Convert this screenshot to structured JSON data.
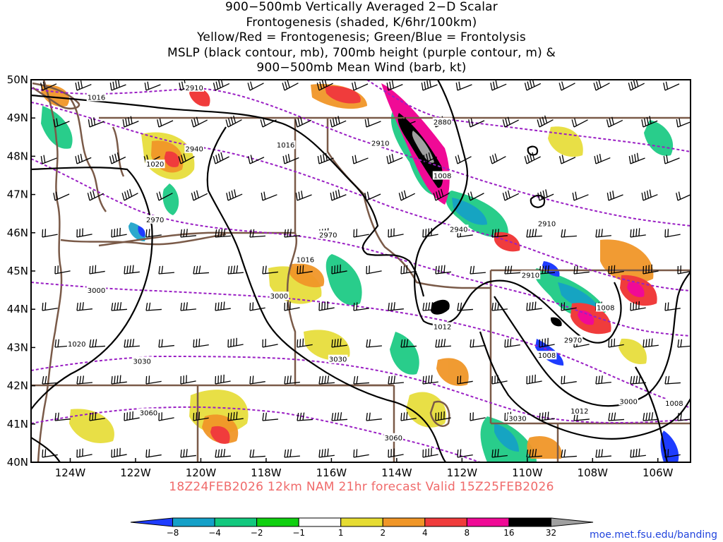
{
  "title": {
    "lines": [
      "900−500mb Vertically Averaged 2−D Scalar",
      "Frontogenesis (shaded, K/6hr/100km)",
      "Yellow/Red = Frontogenesis;  Green/Blue = Frontolysis",
      "MSLP (black contour, mb), 700mb height (purple contour, m) &",
      "900−500mb Mean Wind (barb, kt)"
    ]
  },
  "valid_line": "18Z24FEB2026 12km NAM 21hr forecast Valid 15Z25FEB2026",
  "source": "moe.met.fsu.edu/banding",
  "map": {
    "lat_labels": [
      "50N",
      "49N",
      "48N",
      "47N",
      "46N",
      "45N",
      "44N",
      "43N",
      "42N",
      "41N",
      "40N"
    ],
    "lon_labels": [
      "124W",
      "122W",
      "120W",
      "118W",
      "116W",
      "114W",
      "112W",
      "110W",
      "108W",
      "106W"
    ],
    "lat_range": [
      40,
      50
    ],
    "lon_range": [
      -125.2,
      -105.0
    ],
    "colors": {
      "border": "#7a5a48",
      "mslp": "#000000",
      "height": "#9a1fc4",
      "barb": "#000000"
    },
    "mslp_labels": [
      {
        "text": "1016",
        "lon": -123.2,
        "lat": 49.55
      },
      {
        "text": "1020",
        "lon": -121.4,
        "lat": 47.8
      },
      {
        "text": "1016",
        "lon": -117.4,
        "lat": 48.3
      },
      {
        "text": "1016",
        "lon": -116.8,
        "lat": 45.3
      },
      {
        "text": "1008",
        "lon": -112.6,
        "lat": 47.5
      },
      {
        "text": "1012",
        "lon": -112.6,
        "lat": 43.55
      },
      {
        "text": "1020",
        "lon": -123.8,
        "lat": 43.1
      },
      {
        "text": "1008",
        "lon": -107.6,
        "lat": 44.05
      },
      {
        "text": "1008",
        "lon": -109.4,
        "lat": 42.8
      },
      {
        "text": "1012",
        "lon": -108.4,
        "lat": 41.35
      },
      {
        "text": "1008",
        "lon": -105.5,
        "lat": 41.55
      }
    ],
    "height_labels": [
      {
        "text": "2910",
        "lon": -120.2,
        "lat": 49.8
      },
      {
        "text": "2940",
        "lon": -120.2,
        "lat": 48.2
      },
      {
        "text": "2910",
        "lon": -114.5,
        "lat": 48.35
      },
      {
        "text": "2880",
        "lon": -112.6,
        "lat": 48.9
      },
      {
        "text": "2970",
        "lon": -121.4,
        "lat": 46.35
      },
      {
        "text": "2970",
        "lon": -116.1,
        "lat": 45.95
      },
      {
        "text": "2940",
        "lon": -112.1,
        "lat": 46.1
      },
      {
        "text": "2910",
        "lon": -109.4,
        "lat": 46.25
      },
      {
        "text": "2910",
        "lon": -109.9,
        "lat": 44.9
      },
      {
        "text": "2970",
        "lon": -108.6,
        "lat": 43.2
      },
      {
        "text": "3000",
        "lon": -123.2,
        "lat": 44.5
      },
      {
        "text": "3000",
        "lon": -117.6,
        "lat": 44.35
      },
      {
        "text": "3030",
        "lon": -121.8,
        "lat": 42.65
      },
      {
        "text": "3030",
        "lon": -115.8,
        "lat": 42.7
      },
      {
        "text": "3030",
        "lon": -110.3,
        "lat": 41.15
      },
      {
        "text": "3000",
        "lon": -106.9,
        "lat": 41.6
      },
      {
        "text": "3060",
        "lon": -121.6,
        "lat": 41.3
      },
      {
        "text": "3060",
        "lon": -114.1,
        "lat": 40.65
      }
    ]
  },
  "colorbar": {
    "labels": [
      "−8",
      "−4",
      "−2",
      "−1",
      "1",
      "2",
      "4",
      "8",
      "16",
      "32"
    ],
    "colors": [
      "#1e3cff",
      "#14a0c8",
      "#12c87e",
      "#10d010",
      "#ffffff",
      "#e6dc32",
      "#f09628",
      "#f03c3c",
      "#f00a96",
      "#000000",
      "#a0a0a0"
    ]
  }
}
